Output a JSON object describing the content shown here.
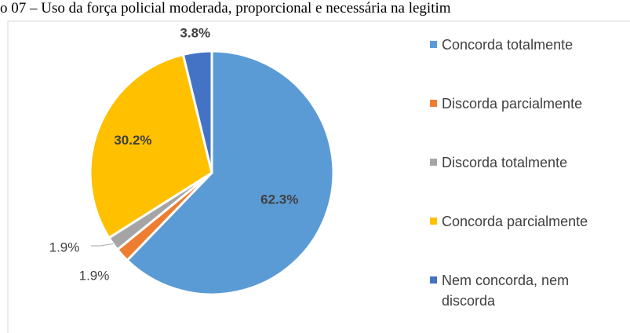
{
  "chart_data": {
    "type": "pie",
    "title": "o 07 – Uso da força policial moderada, proporcional e necessária na legitim",
    "categories": [
      "Concorda totalmente",
      "Discorda parcialmente",
      "Discorda totalmente",
      "Concorda parcialmente",
      "Nem concorda, nem discorda"
    ],
    "values": [
      62.3,
      1.9,
      1.9,
      30.2,
      3.8
    ],
    "value_labels": [
      "62.3%",
      "1.9%",
      "1.9%",
      "30.2%",
      "3.8%"
    ],
    "colors": [
      "#5b9bd5",
      "#ed7d31",
      "#a5a5a5",
      "#ffc000",
      "#4472c4"
    ],
    "legend": "right"
  }
}
